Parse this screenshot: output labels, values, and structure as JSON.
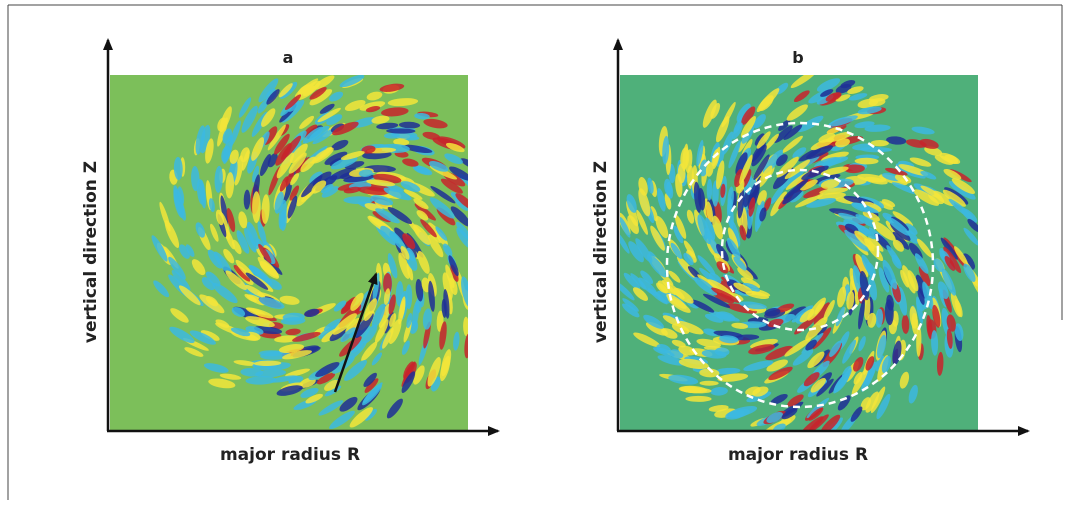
{
  "panels": [
    {
      "label": "a",
      "x_label": "major radius R",
      "y_label": "vertical direction Z"
    },
    {
      "label": "b",
      "x_label": "major radius R",
      "y_label": "vertical direction Z"
    }
  ]
}
